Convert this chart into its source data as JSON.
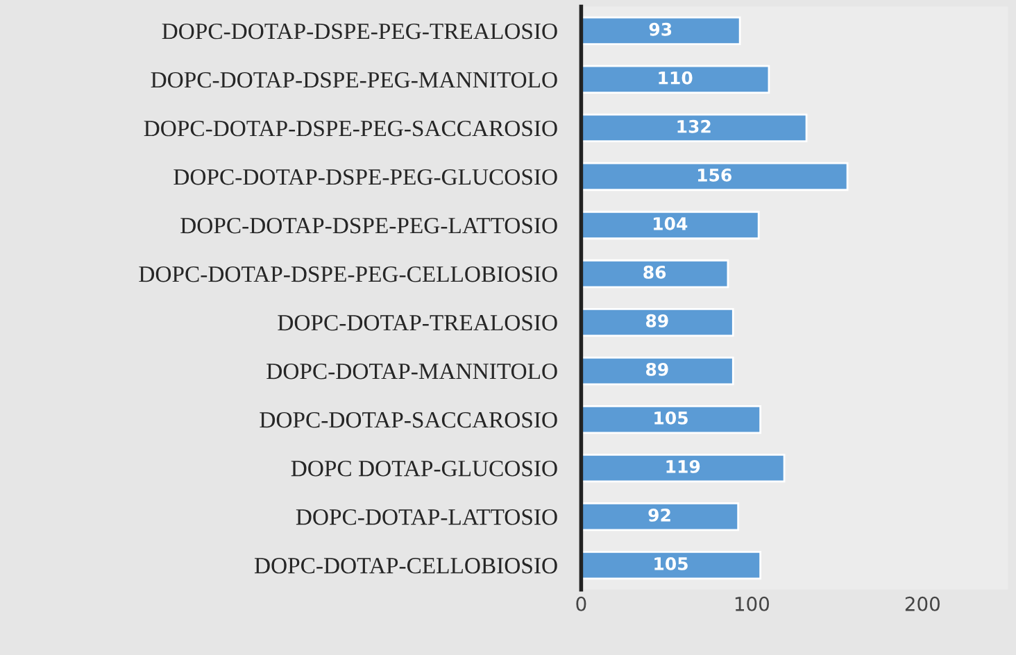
{
  "chart_data": {
    "type": "bar",
    "orientation": "horizontal",
    "categories": [
      "DOPC-DOTAP-DSPE-PEG-TREALOSIO",
      "DOPC-DOTAP-DSPE-PEG-MANNITOLO",
      "DOPC-DOTAP-DSPE-PEG-SACCAROSIO",
      "DOPC-DOTAP-DSPE-PEG-GLUCOSIO",
      "DOPC-DOTAP-DSPE-PEG-LATTOSIO",
      "DOPC-DOTAP-DSPE-PEG-CELLOBIOSIO",
      "DOPC-DOTAP-TREALOSIO",
      "DOPC-DOTAP-MANNITOLO",
      "DOPC-DOTAP-SACCAROSIO",
      "DOPC DOTAP-GLUCOSIO",
      "DOPC-DOTAP-LATTOSIO",
      "DOPC-DOTAP-CELLOBIOSIO"
    ],
    "values": [
      93,
      110,
      132,
      156,
      104,
      86,
      89,
      89,
      105,
      119,
      92,
      105
    ],
    "color": "#5b9bd5",
    "xlim": [
      0,
      250
    ],
    "xticks": [
      0,
      100,
      200
    ],
    "data_labels": true,
    "grid": false,
    "legend": false
  }
}
